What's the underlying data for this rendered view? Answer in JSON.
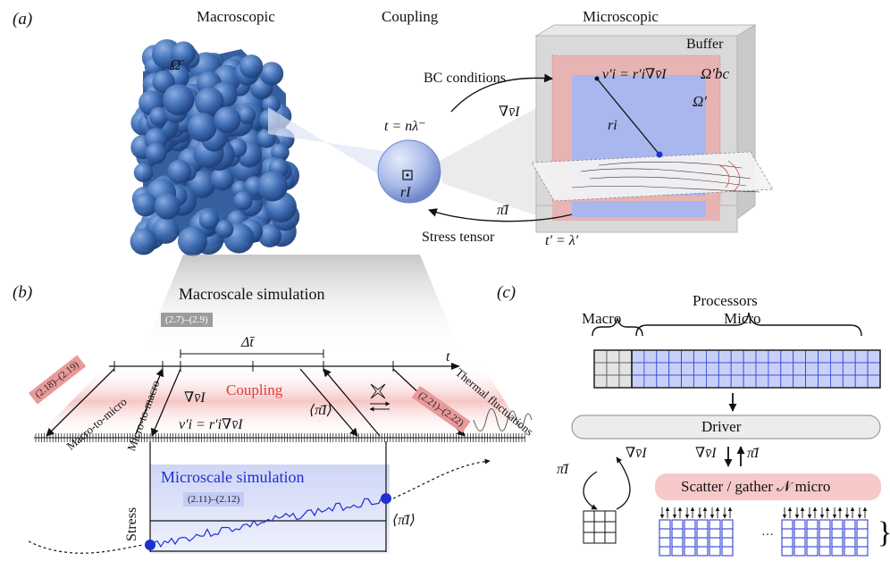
{
  "panels": {
    "a": {
      "tag": "(a)",
      "headers": {
        "macro": "Macroscopic",
        "coupling": "Coupling",
        "micro": "Microscopic"
      },
      "omega_bar": "Ω̄",
      "buffer": "Buffer",
      "omega_bc": "Ω′bc",
      "omega_prime": "Ω′",
      "bc_conditions": "BC conditions",
      "t_macro": "t = nλ⁻",
      "grad_v": "∇v̄I",
      "v_eq": "v′i = r′i∇v̄I",
      "r_i": "ri",
      "r_I": "rI",
      "pi_I": "π̄I",
      "stress_tensor": "Stress tensor",
      "t_micro": "t′ = λ′"
    },
    "b": {
      "tag": "(b)",
      "macro_sim": "Macroscale simulation",
      "eq_macro": "(2.7)–(2.9)",
      "delta_t": "Δt̄",
      "t_axis": "t",
      "coupling": "Coupling",
      "eq_left": "(2.18)–(2.19)",
      "macro_to_micro": "Macro-to-micro",
      "micro_to_macro": "Micro-to-macro",
      "grad_v": "∇v̄I",
      "v_eq": "v′i = r′i∇v̄I",
      "pi_avg": "⟨π̄I⟩",
      "eq_right": "(2.21)–(2.22)",
      "thermal": "Thermal fluctuations",
      "micro_sim": "Microscale simulation",
      "eq_micro": "(2.11)–(2.12)",
      "stress": "Stress",
      "pi_avg_plot": "⟨π̄I⟩"
    },
    "c": {
      "tag": "(c)",
      "processors": "Processors",
      "macro": "Macro",
      "micro": "Micro",
      "driver": "Driver",
      "pi_left": "π̄I",
      "grad_left": "∇v̄I",
      "grad_right": "∇v̄I",
      "pi_right": "π̄I",
      "scatter": "Scatter / gather 𝒩 micro",
      "ellipsis": "···"
    }
  },
  "colors": {
    "sphere_blue": "#3f6fb5",
    "coupling_red": "#e23b3b",
    "micro_blue": "#1f2fd0",
    "micro_grid_fill": "#c9d0f7",
    "scatter_fill": "#f6c8c8",
    "driver_fill": "#ececec"
  }
}
